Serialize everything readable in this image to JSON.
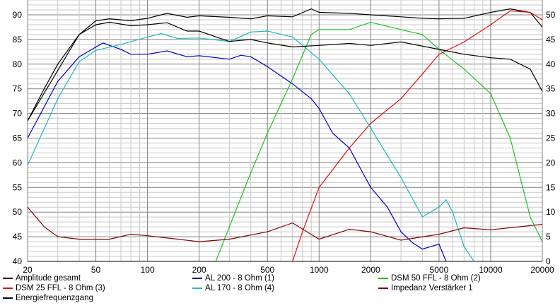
{
  "chart_data": {
    "type": "line",
    "title": "",
    "xlabel": "",
    "ylabel": "",
    "y2label": "",
    "xscale": "log",
    "xlim": [
      20,
      20000
    ],
    "ylim": [
      40,
      93
    ],
    "y2lim": [
      0,
      53
    ],
    "grid": true,
    "legend_position": "bottom",
    "x_ticks": [
      20,
      50,
      100,
      200,
      500,
      1000,
      2000,
      5000,
      10000,
      20000
    ],
    "y_ticks": [
      40,
      45,
      50,
      55,
      60,
      65,
      70,
      75,
      80,
      85,
      90
    ],
    "y2_ticks": [
      0,
      5,
      10,
      15,
      20,
      25,
      30,
      35,
      40,
      45,
      50
    ],
    "series": [
      {
        "name": "Amplitude gesamt",
        "color": "#000000",
        "axis": "left",
        "x": [
          20,
          25,
          30,
          40,
          50,
          60,
          80,
          100,
          130,
          170,
          200,
          300,
          400,
          500,
          700,
          900,
          1000,
          1500,
          2000,
          3000,
          4000,
          5000,
          7000,
          10000,
          13000,
          17000,
          20000
        ],
        "y": [
          68.5,
          75,
          80,
          86,
          88.8,
          89.2,
          88.8,
          89.3,
          90.3,
          89.5,
          89.8,
          89.5,
          89.2,
          89.8,
          89.6,
          91.2,
          90.5,
          90.3,
          90,
          89.6,
          89.3,
          89.2,
          89.3,
          90.5,
          91.2,
          90.5,
          87.5
        ]
      },
      {
        "name": "AL 200 - 8 Ohm (1)",
        "color": "#0000c0",
        "axis": "left",
        "x": [
          20,
          30,
          40,
          55,
          70,
          80,
          100,
          130,
          170,
          200,
          300,
          350,
          400,
          500,
          700,
          900,
          1000,
          1200,
          1500,
          2000,
          2500,
          3000,
          3500,
          4000,
          5000,
          5500
        ],
        "y": [
          65,
          76.5,
          81.5,
          84.3,
          83,
          82,
          82,
          82.7,
          81.5,
          81.7,
          81,
          81.8,
          81.5,
          79.5,
          76,
          73,
          71,
          66,
          63,
          55,
          51,
          46,
          43.8,
          42.5,
          43.5,
          40
        ]
      },
      {
        "name": "DSM 50 FFL - 8 Ohm (2)",
        "color": "#20c020",
        "axis": "left",
        "x": [
          250,
          300,
          400,
          500,
          700,
          900,
          1000,
          1500,
          2000,
          3000,
          4000,
          5000,
          7000,
          10000,
          13000,
          17000,
          20000
        ],
        "y": [
          40,
          47,
          58,
          66,
          77,
          86,
          87,
          87,
          88.5,
          87,
          86,
          83,
          79,
          74,
          65,
          49,
          44
        ]
      },
      {
        "name": "DSM 25 FFL - 8 Ohm (3)",
        "color": "#e01010",
        "axis": "left",
        "x": [
          700,
          800,
          1000,
          1500,
          2000,
          3000,
          4000,
          5000,
          7000,
          10000,
          13000,
          17000,
          20000
        ],
        "y": [
          40,
          46,
          55,
          63,
          68,
          73,
          78,
          82,
          84.5,
          88,
          90.8,
          90.5,
          89
        ]
      },
      {
        "name": "AL 170 - 8 Ohm (4)",
        "color": "#20b8c0",
        "axis": "left",
        "x": [
          20,
          30,
          40,
          50,
          70,
          100,
          120,
          150,
          200,
          300,
          400,
          500,
          700,
          1000,
          1500,
          2000,
          3000,
          4000,
          5000,
          5500,
          6000,
          7000,
          8000
        ],
        "y": [
          59.5,
          73,
          80.5,
          82.8,
          84,
          85.5,
          86.2,
          85.2,
          85.3,
          84.6,
          86.5,
          86.7,
          85.5,
          81,
          74,
          67,
          57,
          49,
          51,
          52.5,
          50,
          43,
          40
        ]
      },
      {
        "name": "Impedanz Verstärker 1",
        "color": "#800000",
        "axis": "right",
        "x": [
          20,
          25,
          30,
          40,
          60,
          80,
          100,
          200,
          300,
          500,
          700,
          1000,
          1500,
          2000,
          3000,
          5000,
          7000,
          10000,
          20000
        ],
        "y": [
          11,
          7,
          5,
          4.5,
          4.5,
          5.5,
          5.2,
          4,
          4.5,
          6,
          7.8,
          4.5,
          6.5,
          6,
          4.3,
          5.5,
          6.8,
          6.4,
          7.5
        ]
      },
      {
        "name": "Energiefrequenzgang",
        "color": "#000000",
        "axis": "left",
        "x": [
          20,
          40,
          50,
          60,
          80,
          100,
          130,
          170,
          200,
          300,
          400,
          500,
          700,
          1000,
          1500,
          2000,
          3000,
          5000,
          7000,
          10000,
          13000,
          17000,
          20000
        ],
        "y": [
          68.5,
          86,
          88,
          88.5,
          87.8,
          88,
          88.4,
          86.7,
          86.7,
          84.6,
          85,
          84.3,
          83.5,
          83.8,
          84.2,
          83.8,
          84.5,
          83,
          82,
          81.3,
          81,
          79,
          74.5
        ]
      }
    ],
    "legend": [
      {
        "label": "Amplitude gesamt",
        "color": "#000000"
      },
      {
        "label": "AL 200 - 8 Ohm (1)",
        "color": "#0000a0"
      },
      {
        "label": "DSM 50 FFL - 8 Ohm (2)",
        "color": "#20c020"
      },
      {
        "label": "DSM 25 FFL - 8 Ohm (3)",
        "color": "#e01010"
      },
      {
        "label": "AL 170 - 8 Ohm (4)",
        "color": "#20b8c0"
      },
      {
        "label": "Impedanz Verstärker 1",
        "color": "#800000"
      },
      {
        "label": "Energiefrequenzgang",
        "color": "#000000"
      }
    ]
  }
}
